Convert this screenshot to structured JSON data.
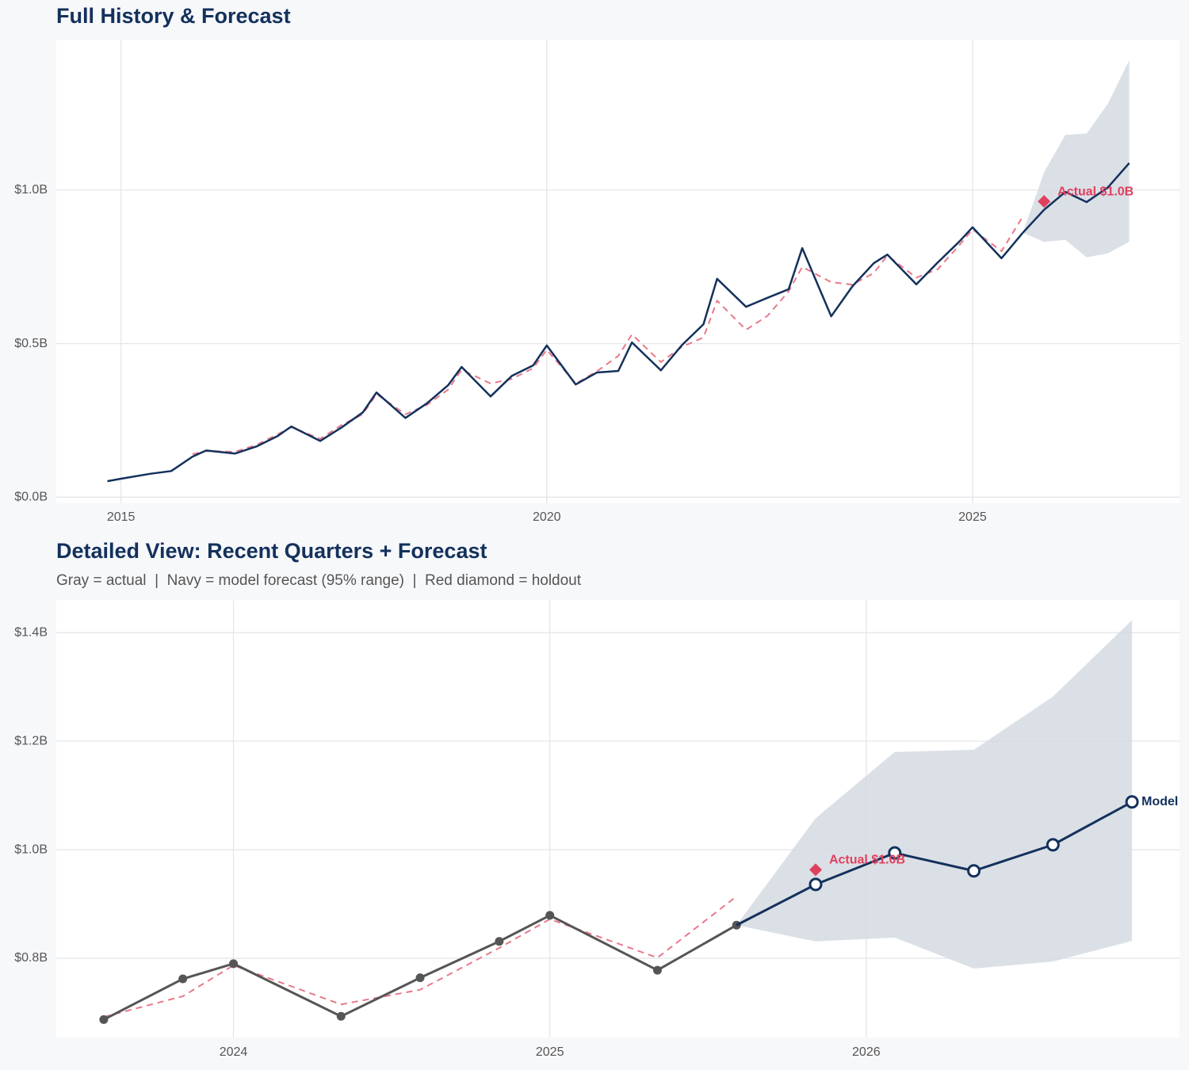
{
  "chart_data": [
    {
      "type": "line",
      "title": "Full History & Forecast",
      "xlim": [
        2014.24,
        2027.43
      ],
      "ylim": [
        -0.02,
        1.49
      ],
      "xticks": [
        2015,
        2020,
        2025
      ],
      "yticks": [
        {
          "value": 0,
          "label": "$0.0B"
        },
        {
          "value": 0.5,
          "label": "$0.5B"
        },
        {
          "value": 1,
          "label": "$1.0B"
        }
      ],
      "grid": true,
      "band": {
        "color": "#d5dae2",
        "x": [
          2025.59,
          2025.84,
          2026.09,
          2026.34,
          2026.59,
          2026.84
        ],
        "upper": [
          0.861,
          1.058,
          1.18,
          1.184,
          1.282,
          1.423
        ],
        "lower": [
          0.861,
          0.831,
          0.838,
          0.781,
          0.794,
          0.832
        ]
      },
      "series": [
        {
          "color": "#e8798a",
          "dashed": true,
          "x": [
            2014.84,
            2015,
            2015.34,
            2015.59,
            2015.84,
            2016,
            2016.34,
            2016.59,
            2016.84,
            2017,
            2017.34,
            2017.59,
            2017.84,
            2018,
            2018.34,
            2018.59,
            2018.84,
            2019,
            2019.34,
            2019.59,
            2019.84,
            2020,
            2020.34,
            2020.59,
            2020.84,
            2021,
            2021.34,
            2021.59,
            2021.84,
            2022,
            2022.34,
            2022.59,
            2022.84,
            2023,
            2023.34,
            2023.59,
            2023.84,
            2024,
            2024.34,
            2024.59,
            2024.84,
            2025,
            2025.34,
            2025.59
          ],
          "values": [
            null,
            null,
            null,
            null,
            0.14,
            0.15,
            0.148,
            0.17,
            0.205,
            0.228,
            0.19,
            0.235,
            0.27,
            0.336,
            0.27,
            0.3,
            0.35,
            0.415,
            0.37,
            0.385,
            0.42,
            0.48,
            0.37,
            0.41,
            0.46,
            0.53,
            0.44,
            0.49,
            0.52,
            0.64,
            0.545,
            0.59,
            0.67,
            0.75,
            0.7,
            0.692,
            0.73,
            0.787,
            0.715,
            0.742,
            0.819,
            0.872,
            0.801,
            0.914
          ]
        },
        {
          "color": "#13315c",
          "x": [
            2014.84,
            2015,
            2015.34,
            2015.59,
            2015.84,
            2016,
            2016.34,
            2016.59,
            2016.84,
            2017,
            2017.34,
            2017.59,
            2017.84,
            2018,
            2018.34,
            2018.59,
            2018.84,
            2019,
            2019.34,
            2019.59,
            2019.84,
            2020,
            2020.34,
            2020.59,
            2020.84,
            2021,
            2021.34,
            2021.59,
            2021.84,
            2022,
            2022.34,
            2022.59,
            2022.84,
            2023,
            2023.34,
            2023.59,
            2023.84,
            2024,
            2024.34,
            2024.59,
            2024.84,
            2025,
            2025.34,
            2025.59
          ],
          "values": [
            0.052,
            0.06,
            0.076,
            0.085,
            0.132,
            0.152,
            0.142,
            0.165,
            0.199,
            0.23,
            0.183,
            0.227,
            0.276,
            0.341,
            0.258,
            0.305,
            0.364,
            0.424,
            0.328,
            0.395,
            0.429,
            0.494,
            0.367,
            0.406,
            0.411,
            0.504,
            0.413,
            0.496,
            0.563,
            0.711,
            0.62,
            0.649,
            0.677,
            0.811,
            0.589,
            0.687,
            0.762,
            0.79,
            0.693,
            0.764,
            0.831,
            0.879,
            0.778,
            0.861
          ]
        },
        {
          "color": "#13315c",
          "x": [
            2025.84,
            2026.09,
            2026.34,
            2026.59,
            2026.84
          ],
          "values": [
            0.936,
            0.994,
            0.961,
            1.009,
            1.088
          ]
        }
      ],
      "holdout": {
        "x": 2025.84,
        "value": 0.963,
        "label": "Actual $1.0B",
        "color": "#e0405e"
      }
    },
    {
      "type": "line",
      "title": "Detailed View: Recent Quarters + Forecast",
      "subtitle": "Gray = actual  |  Navy = model forecast (95% range)  |  Red diamond = holdout",
      "xlim": [
        2023.44,
        2026.99
      ],
      "ylim": [
        0.654,
        1.46
      ],
      "xticks": [
        2024,
        2025,
        2026
      ],
      "yticks": [
        {
          "value": 0.8,
          "label": "$0.8B"
        },
        {
          "value": 1,
          "label": "$1.0B"
        },
        {
          "value": 1.2,
          "label": "$1.2B"
        },
        {
          "value": 1.4,
          "label": "$1.4B"
        }
      ],
      "grid": true,
      "band": {
        "color": "#d5dae2",
        "x": [
          2025.59,
          2025.84,
          2026.09,
          2026.34,
          2026.59,
          2026.84
        ],
        "upper": [
          0.861,
          1.058,
          1.18,
          1.184,
          1.282,
          1.423
        ],
        "lower": [
          0.861,
          0.831,
          0.838,
          0.781,
          0.794,
          0.832
        ]
      },
      "series": [
        {
          "color": "#e8798a",
          "dashed": true,
          "x": [
            2023.59,
            2023.84,
            2024,
            2024.34,
            2024.59,
            2024.84,
            2025,
            2025.34,
            2025.59
          ],
          "values": [
            0.692,
            0.73,
            0.787,
            0.715,
            0.742,
            0.819,
            0.872,
            0.801,
            0.914
          ]
        },
        {
          "color": "#555555",
          "markers": "filled",
          "x": [
            2023.59,
            2023.84,
            2024,
            2024.34,
            2024.59,
            2024.84,
            2025,
            2025.34,
            2025.59
          ],
          "values": [
            0.687,
            0.762,
            0.79,
            0.693,
            0.764,
            0.831,
            0.879,
            0.778,
            0.861
          ]
        },
        {
          "name": "Model",
          "color": "#13315c",
          "markers": "open",
          "x": [
            2025.84,
            2026.09,
            2026.34,
            2026.59,
            2026.84
          ],
          "values": [
            0.936,
            0.994,
            0.961,
            1.009,
            1.088
          ]
        }
      ],
      "holdout": {
        "x": 2025.84,
        "value": 0.963,
        "label": "Actual $1.0B",
        "color": "#e0405e"
      }
    }
  ]
}
